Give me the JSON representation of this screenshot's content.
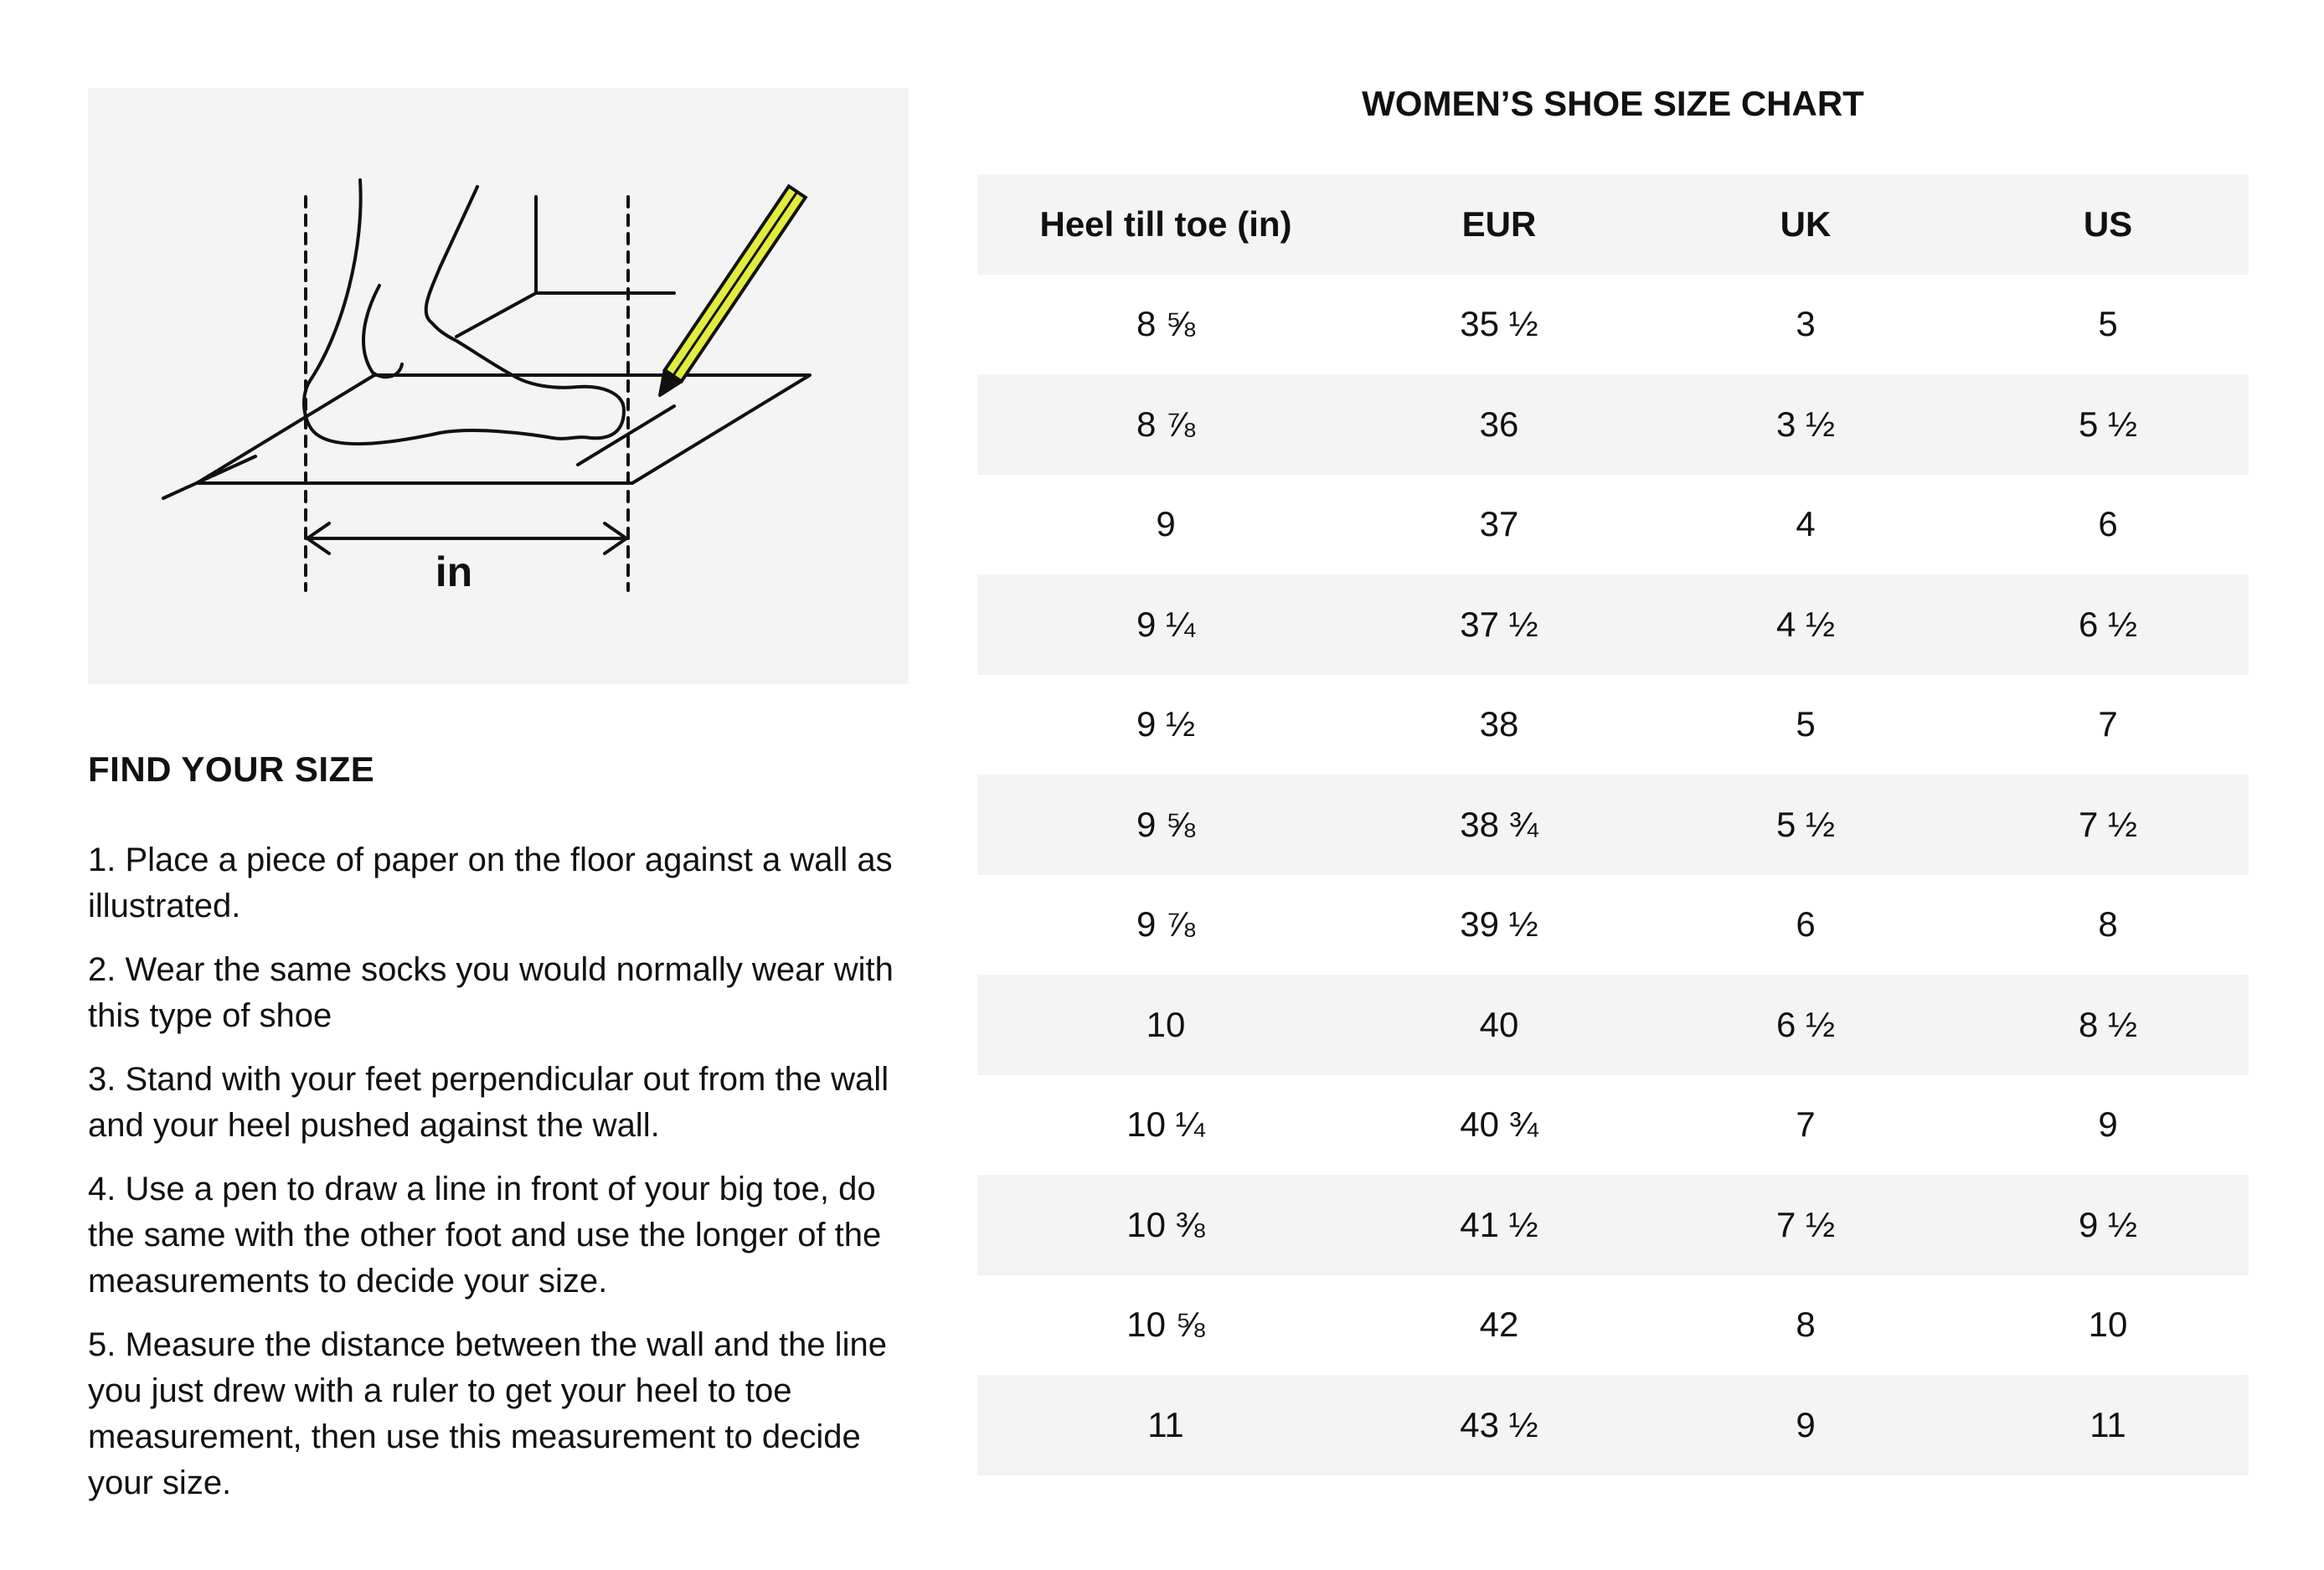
{
  "illustration": {
    "measure_label": "in",
    "pencil_color": "#e2ec3c"
  },
  "find_your_size": {
    "title": "FIND YOUR SIZE",
    "steps": [
      "1. Place a piece of paper on the floor against a wall as illustrated.",
      "2. Wear the same socks you would normally wear with this type of shoe",
      "3. Stand with your feet perpendicular out from the wall and your heel pushed against the wall.",
      "4. Use a pen to draw a line in front of your big toe, do the same with the other foot and use the longer of the measurements to decide your size.",
      "5. Measure the distance between the wall and the line you just drew with a ruler to get your heel to toe measurement, then use this measurement to decide your size."
    ]
  },
  "size_chart": {
    "title": "WOMEN’S SHOE SIZE CHART",
    "columns": [
      "Heel till toe (in)",
      "EUR",
      "UK",
      "US"
    ],
    "rows": [
      [
        "8 ⅝",
        "35 ½",
        "3",
        "5"
      ],
      [
        "8 ⅞",
        "36",
        "3 ½",
        "5 ½"
      ],
      [
        "9",
        "37",
        "4",
        "6"
      ],
      [
        "9 ¼",
        "37 ½",
        "4 ½",
        "6 ½"
      ],
      [
        "9 ½",
        "38",
        "5",
        "7"
      ],
      [
        "9 ⅝",
        "38 ¾",
        "5 ½",
        "7 ½"
      ],
      [
        "9 ⅞",
        "39 ½",
        "6",
        "8"
      ],
      [
        "10",
        "40",
        "6 ½",
        "8 ½"
      ],
      [
        "10 ¼",
        "40 ¾",
        "7",
        "9"
      ],
      [
        "10 ⅜",
        "41 ½",
        "7 ½",
        "9 ½"
      ],
      [
        "10 ⅝",
        "42",
        "8",
        "10"
      ],
      [
        "11",
        "43 ½",
        "9",
        "11"
      ]
    ]
  }
}
